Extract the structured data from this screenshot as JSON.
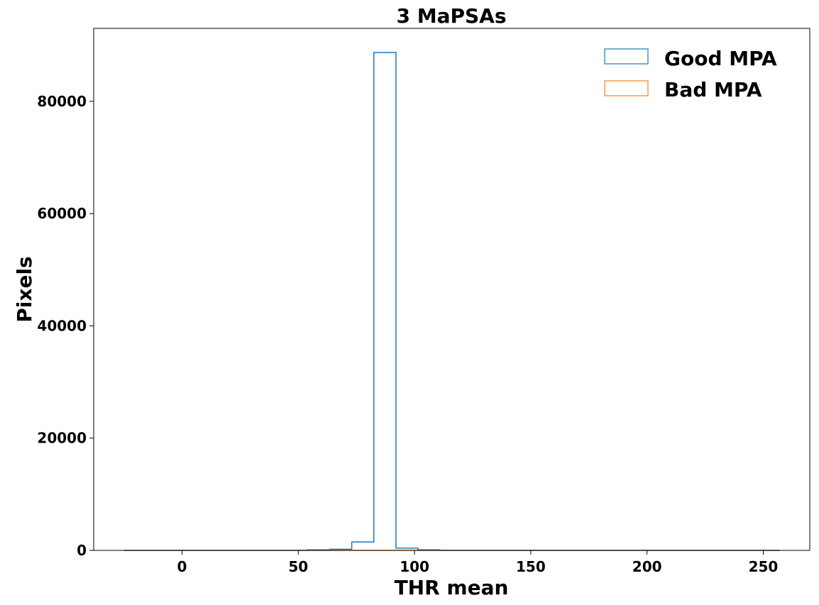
{
  "chart_data": {
    "type": "bar",
    "title": "3 MaPSAs",
    "xlabel": "THR mean",
    "ylabel": "Pixels",
    "xlim": [
      -38,
      270
    ],
    "ylim": [
      0,
      93000
    ],
    "xticks": [
      0,
      50,
      100,
      150,
      200,
      250
    ],
    "yticks": [
      0,
      20000,
      40000,
      60000,
      80000
    ],
    "grid": false,
    "legend_placement": "top-right",
    "bin_edges": [
      -25,
      -15.5,
      -6,
      3.5,
      13,
      22.5,
      32,
      41.5,
      51,
      60.5,
      70,
      79.5,
      89,
      98.5,
      108,
      117.5,
      127,
      136.5,
      146,
      155.5,
      165,
      174.5,
      184,
      193.5,
      203,
      212.5,
      222,
      231.5,
      241,
      250.5,
      257
    ],
    "series": [
      {
        "name": "Good MPA",
        "color": "#1f77b4",
        "bin_edges": [
          -25,
          54,
          63.5,
          73,
          82.5,
          92,
          101.5,
          111,
          257
        ],
        "counts": [
          0,
          100,
          200,
          1500,
          88700,
          400,
          100,
          0
        ]
      },
      {
        "name": "Bad MPA",
        "color": "#ff7f0e",
        "bin_edges": [
          -25,
          257
        ],
        "counts": [
          0
        ]
      }
    ]
  }
}
